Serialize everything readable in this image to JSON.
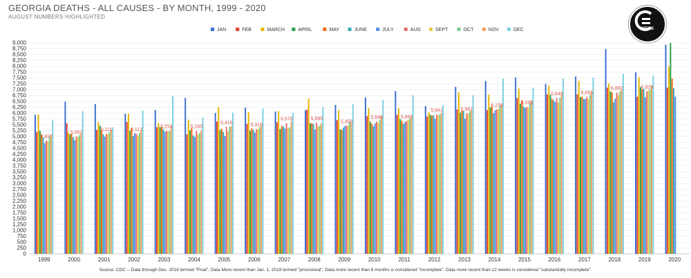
{
  "header": {
    "title": "GEORGIA DEATHS - ALL CAUSES - BY MONTH, 1999 - 2020",
    "subtitle": "AUGUST NUMBERS HIGHLIGHTED"
  },
  "logo": {
    "text": "NEWS"
  },
  "footer": {
    "source": "Source: CDC -- Data through Dec. 2018 termed \"Final\", Data More recent than Jan. 1, 2019 termed \"provisional\", Data more recent than 6 months is considered \"incomplete\", Data more recent than 12 weeks is considered \"substantially incomplete\"."
  },
  "chart_data": {
    "type": "bar",
    "title": "GEORGIA DEATHS - ALL CAUSES - BY MONTH, 1999 - 2020",
    "subtitle": "AUGUST NUMBERS HIGHLIGHTED",
    "categories": [
      "1999",
      "2000",
      "2001",
      "2002",
      "2003",
      "2004",
      "2005",
      "2006",
      "2007",
      "2008",
      "2009",
      "2010",
      "2011",
      "2012",
      "2013",
      "2014",
      "2015",
      "2016",
      "2017",
      "2018",
      "2019",
      "2020"
    ],
    "ylim": [
      0,
      9000
    ],
    "yticks": [
      "0",
      "250",
      "500",
      "750",
      "1,000",
      "1,250",
      "1,500",
      "1,750",
      "2,000",
      "2,250",
      "2,500",
      "2,750",
      "3,000",
      "3,250",
      "3,500",
      "3,750",
      "4,000",
      "4,250",
      "4,500",
      "4,750",
      "5,000",
      "5,250",
      "5,500",
      "5,750",
      "6,000",
      "6,250",
      "6,500",
      "6,750",
      "7,000",
      "7,250",
      "7,500",
      "7,750",
      "8,000",
      "8,250",
      "8,500",
      "8,750",
      "9,000"
    ],
    "grid": true,
    "legend_position": "top",
    "highlight_series": "AUG",
    "aug_labels": [
      "4,827",
      "5,002",
      "5,111",
      "5,117",
      "5,254",
      "5,245",
      "5,416",
      "5,319",
      "5,570",
      "5,595",
      "5,458",
      "5,646",
      "5,662",
      "5,941",
      "5,987",
      "6,159",
      "6,265",
      "6,649",
      "6,695",
      "6,882",
      "6,929",
      ""
    ],
    "series": [
      {
        "name": "JAN",
        "color": "#3b6fd1",
        "values": [
          5930,
          6490,
          6390,
          5970,
          6130,
          6650,
          6010,
          6230,
          6070,
          6120,
          6350,
          6670,
          6940,
          6300,
          7120,
          7370,
          7520,
          7250,
          7560,
          8730,
          7740,
          8920
        ]
      },
      {
        "name": "FEB",
        "color": "#e04030",
        "values": [
          5200,
          5570,
          5290,
          5620,
          5400,
          5100,
          5640,
          5540,
          5610,
          6150,
          5700,
          5870,
          5930,
          5860,
          6160,
          6130,
          6640,
          6800,
          6800,
          7090,
          6700,
          7090
        ]
      },
      {
        "name": "MARCH",
        "color": "#e8b400",
        "values": [
          5940,
          5170,
          5620,
          5980,
          5580,
          5720,
          6250,
          6040,
          6090,
          6620,
          6130,
          6210,
          6210,
          6040,
          6880,
          6790,
          7050,
          7180,
          7380,
          7260,
          7530,
          7990
        ]
      },
      {
        "name": "APRIL",
        "color": "#2e9e4a",
        "values": [
          5250,
          5100,
          5460,
          5250,
          5400,
          5270,
          5280,
          5250,
          5320,
          5570,
          5310,
          5640,
          5750,
          5930,
          6020,
          6240,
          6400,
          6780,
          6680,
          6930,
          7110,
          8990
        ]
      },
      {
        "name": "MAY",
        "color": "#f06a0f",
        "values": [
          5100,
          5120,
          5280,
          5370,
          5410,
          5380,
          5330,
          5350,
          5460,
          5570,
          5280,
          5550,
          5670,
          5890,
          6120,
          6290,
          6550,
          6610,
          6700,
          6890,
          7020,
          7470
        ]
      },
      {
        "name": "JUNE",
        "color": "#34aab8",
        "values": [
          4960,
          4970,
          5100,
          5030,
          5320,
          5050,
          5200,
          5280,
          5420,
          5540,
          5380,
          5440,
          5550,
          5910,
          6090,
          6000,
          6280,
          6550,
          6610,
          6460,
          7030,
          7060
        ]
      },
      {
        "name": "JULY",
        "color": "#5b8de8",
        "values": [
          4720,
          4840,
          5000,
          5150,
          5210,
          4980,
          5030,
          5170,
          5350,
          5300,
          5450,
          5560,
          5620,
          5760,
          5760,
          6120,
          6220,
          6470,
          6600,
          6620,
          6680,
          6700
        ]
      },
      {
        "name": "AUG",
        "color": "#e86f6f",
        "values": [
          4827,
          5002,
          5111,
          5117,
          5254,
          5245,
          5416,
          5319,
          5570,
          5595,
          5458,
          5646,
          5662,
          5941,
          5987,
          6159,
          6265,
          6649,
          6695,
          6882,
          6929,
          null
        ]
      },
      {
        "name": "SEPT",
        "color": "#e8c84a",
        "values": [
          4800,
          4980,
          5110,
          5040,
          5210,
          5080,
          5220,
          5310,
          5350,
          5420,
          5480,
          5580,
          5700,
          5900,
          5980,
          6170,
          6250,
          6450,
          6600,
          6770,
          6960,
          null
        ]
      },
      {
        "name": "OCT",
        "color": "#7cc98c",
        "values": [
          5010,
          5060,
          5200,
          5150,
          5260,
          5150,
          5420,
          5400,
          5400,
          5470,
          5630,
          5730,
          5760,
          5960,
          6080,
          6310,
          6430,
          6660,
          6780,
          6930,
          7020,
          null
        ]
      },
      {
        "name": "NOV",
        "color": "#f0a060",
        "values": [
          5060,
          5130,
          5290,
          5300,
          5420,
          5260,
          5450,
          5470,
          5640,
          5570,
          5570,
          5870,
          5880,
          6020,
          6150,
          6350,
          6540,
          6800,
          6880,
          7000,
          7150,
          null
        ]
      },
      {
        "name": "DEC",
        "color": "#7ad0de",
        "values": [
          5690,
          6080,
          5400,
          6110,
          6730,
          5810,
          6020,
          6200,
          6010,
          6250,
          6380,
          6560,
          6760,
          6340,
          6760,
          7470,
          7090,
          7470,
          7520,
          7680,
          7600,
          null
        ]
      }
    ]
  }
}
